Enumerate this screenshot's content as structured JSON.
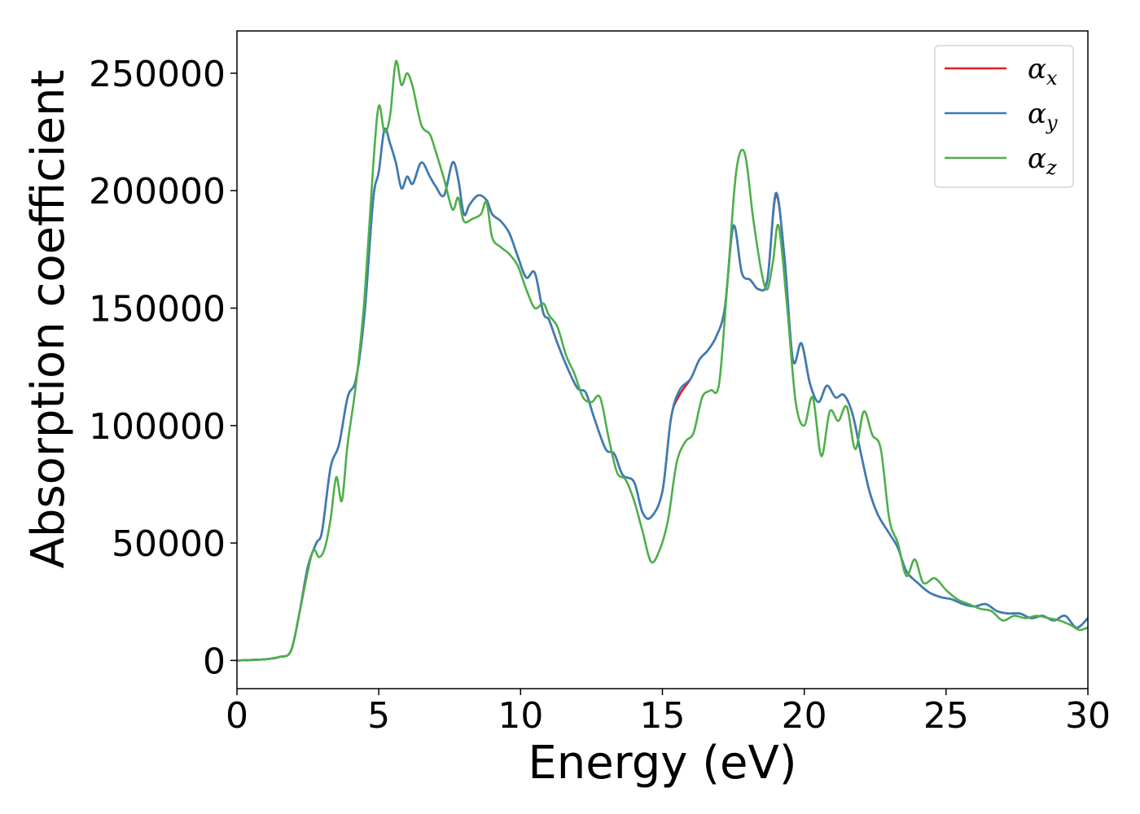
{
  "chart_data": {
    "type": "line",
    "title": "",
    "xlabel": "Energy (eV)",
    "ylabel": "Absorption coefficient",
    "xlim": [
      0,
      30
    ],
    "ylim": [
      -12000,
      268000
    ],
    "xticks": [
      0,
      5,
      10,
      15,
      20,
      25,
      30
    ],
    "yticks": [
      0,
      50000,
      100000,
      150000,
      200000,
      250000
    ],
    "grid": false,
    "legend_placement": "top-right",
    "series": [
      {
        "name": "α",
        "subscript": "x",
        "color": "#e41a1c",
        "x": [
          0,
          1,
          1.5,
          1.9,
          2.2,
          2.5,
          2.8,
          3.0,
          3.3,
          3.6,
          3.9,
          4.2,
          4.5,
          4.8,
          5.0,
          5.2,
          5.4,
          5.6,
          5.8,
          6.0,
          6.2,
          6.5,
          6.8,
          7.0,
          7.3,
          7.6,
          7.8,
          8.0,
          8.2,
          8.5,
          8.8,
          9.0,
          9.3,
          9.6,
          9.9,
          10.2,
          10.5,
          10.8,
          11.0,
          11.3,
          11.6,
          12.0,
          12.3,
          12.6,
          13.0,
          13.3,
          13.6,
          14.0,
          14.3,
          14.6,
          15.0,
          15.3,
          15.6,
          16.0,
          16.3,
          16.6,
          16.9,
          17.2,
          17.5,
          17.8,
          18.1,
          18.4,
          18.7,
          19.0,
          19.3,
          19.6,
          19.9,
          20.2,
          20.5,
          20.8,
          21.1,
          21.4,
          21.7,
          22.0,
          22.3,
          22.6,
          23.0,
          23.3,
          23.6,
          24.0,
          24.4,
          24.8,
          25.2,
          25.6,
          26.0,
          26.4,
          26.8,
          27.2,
          27.6,
          28.0,
          28.4,
          28.8,
          29.2,
          29.6,
          30.0
        ],
        "y": [
          0,
          500,
          1500,
          4000,
          20000,
          40000,
          50000,
          55000,
          82000,
          92000,
          112000,
          120000,
          148000,
          196000,
          208000,
          226000,
          220000,
          212000,
          201000,
          206000,
          203000,
          212000,
          206000,
          202000,
          198000,
          212000,
          205000,
          190000,
          194000,
          198000,
          196000,
          190000,
          187000,
          182000,
          172000,
          163000,
          165000,
          148000,
          145000,
          135000,
          126000,
          116000,
          114000,
          103000,
          90000,
          88000,
          79000,
          76000,
          63000,
          61000,
          72000,
          103000,
          113000,
          120000,
          128000,
          132000,
          138000,
          150000,
          185000,
          165000,
          162000,
          158000,
          162000,
          198000,
          172000,
          128000,
          135000,
          118000,
          110000,
          117000,
          112000,
          113000,
          105000,
          88000,
          72000,
          62000,
          54000,
          48000,
          38000,
          33000,
          29000,
          27000,
          26000,
          24000,
          23000,
          24000,
          21000,
          20000,
          20000,
          18000,
          19000,
          17000,
          19000,
          14000,
          18000
        ]
      },
      {
        "name": "α",
        "subscript": "y",
        "color": "#377eb8",
        "x": [
          0,
          1,
          1.5,
          1.9,
          2.2,
          2.5,
          2.8,
          3.0,
          3.3,
          3.6,
          3.9,
          4.2,
          4.5,
          4.8,
          5.0,
          5.2,
          5.4,
          5.6,
          5.8,
          6.0,
          6.2,
          6.5,
          6.8,
          7.0,
          7.3,
          7.6,
          7.8,
          8.0,
          8.2,
          8.5,
          8.8,
          9.0,
          9.3,
          9.6,
          9.9,
          10.2,
          10.5,
          10.8,
          11.0,
          11.3,
          11.6,
          12.0,
          12.3,
          12.6,
          13.0,
          13.3,
          13.6,
          14.0,
          14.3,
          14.6,
          15.0,
          15.3,
          15.6,
          16.0,
          16.3,
          16.6,
          16.9,
          17.2,
          17.5,
          17.8,
          18.1,
          18.4,
          18.7,
          19.0,
          19.3,
          19.6,
          19.9,
          20.2,
          20.5,
          20.8,
          21.1,
          21.4,
          21.7,
          22.0,
          22.3,
          22.6,
          23.0,
          23.3,
          23.6,
          24.0,
          24.4,
          24.8,
          25.2,
          25.6,
          26.0,
          26.4,
          26.8,
          27.2,
          27.6,
          28.0,
          28.4,
          28.8,
          29.2,
          29.6,
          30.0
        ],
        "y": [
          0,
          500,
          1500,
          4000,
          20000,
          40000,
          50000,
          55000,
          82000,
          92000,
          112000,
          120000,
          148000,
          196000,
          208000,
          226000,
          220000,
          212000,
          201000,
          206000,
          203000,
          212000,
          206000,
          202000,
          198000,
          212000,
          205000,
          190000,
          194000,
          198000,
          196000,
          190000,
          187000,
          182000,
          172000,
          163000,
          165000,
          148000,
          145000,
          135000,
          126000,
          116000,
          114000,
          103000,
          90000,
          88000,
          79000,
          76000,
          63000,
          61000,
          72000,
          103000,
          115000,
          120000,
          128000,
          132000,
          138000,
          150000,
          185000,
          165000,
          162000,
          158000,
          162000,
          199000,
          172000,
          128000,
          135000,
          118000,
          110000,
          117000,
          112000,
          113000,
          105000,
          88000,
          72000,
          62000,
          54000,
          48000,
          38000,
          33000,
          29000,
          27000,
          26000,
          24000,
          23000,
          24000,
          21000,
          20000,
          20000,
          18000,
          19000,
          17000,
          19000,
          14000,
          18000
        ]
      },
      {
        "name": "α",
        "subscript": "z",
        "color": "#4daf4a",
        "x": [
          0,
          1,
          1.5,
          1.9,
          2.2,
          2.5,
          2.7,
          2.9,
          3.1,
          3.3,
          3.5,
          3.7,
          3.9,
          4.2,
          4.5,
          4.8,
          5.0,
          5.2,
          5.4,
          5.6,
          5.8,
          6.0,
          6.2,
          6.5,
          6.8,
          7.0,
          7.3,
          7.6,
          7.8,
          8.0,
          8.3,
          8.6,
          8.8,
          9.0,
          9.3,
          9.6,
          9.9,
          10.2,
          10.5,
          10.8,
          11.0,
          11.3,
          11.6,
          11.9,
          12.2,
          12.5,
          12.8,
          13.1,
          13.4,
          13.7,
          14.0,
          14.3,
          14.6,
          14.9,
          15.2,
          15.5,
          15.8,
          16.1,
          16.4,
          16.7,
          17.0,
          17.3,
          17.6,
          17.9,
          18.2,
          18.5,
          18.7,
          18.9,
          19.1,
          19.4,
          19.7,
          20.0,
          20.3,
          20.6,
          20.9,
          21.2,
          21.5,
          21.8,
          22.1,
          22.4,
          22.7,
          23.0,
          23.3,
          23.6,
          23.9,
          24.2,
          24.6,
          25.0,
          25.4,
          25.8,
          26.2,
          26.6,
          27.0,
          27.4,
          27.8,
          28.2,
          28.6,
          29.0,
          29.4,
          29.7,
          30.0
        ],
        "y": [
          0,
          500,
          1500,
          4000,
          20000,
          38000,
          47000,
          44000,
          48000,
          60000,
          78000,
          68000,
          92000,
          118000,
          155000,
          210000,
          236000,
          225000,
          232000,
          255000,
          245000,
          250000,
          244000,
          228000,
          224000,
          217000,
          205000,
          192000,
          197000,
          187000,
          188000,
          190000,
          195000,
          180000,
          176000,
          173000,
          168000,
          158000,
          150000,
          152000,
          147000,
          142000,
          130000,
          122000,
          112000,
          110000,
          112000,
          95000,
          80000,
          77000,
          68000,
          55000,
          42000,
          47000,
          60000,
          84000,
          93000,
          97000,
          112000,
          115000,
          118000,
          162000,
          208000,
          216000,
          188000,
          165000,
          158000,
          170000,
          185000,
          150000,
          110000,
          100000,
          112000,
          87000,
          106000,
          102000,
          108000,
          90000,
          106000,
          96000,
          90000,
          60000,
          50000,
          36000,
          43000,
          33000,
          35000,
          30000,
          26000,
          24000,
          22000,
          21000,
          17000,
          19000,
          18000,
          19000,
          18000,
          17000,
          15000,
          13000,
          14000
        ]
      }
    ]
  }
}
